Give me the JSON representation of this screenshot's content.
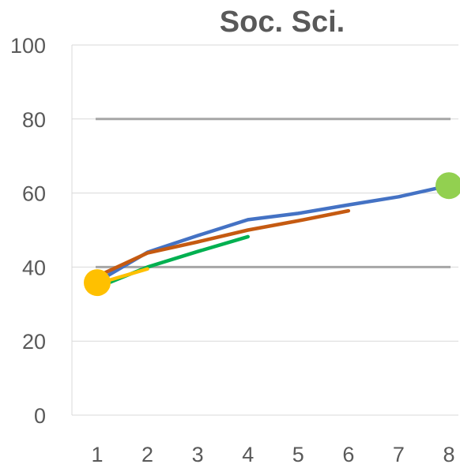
{
  "chart_data": {
    "type": "line",
    "title": "Soc. Sci.",
    "xlabel": "",
    "ylabel": "",
    "x": [
      1,
      2,
      3,
      4,
      5,
      6,
      7,
      8
    ],
    "ylim": [
      0,
      100
    ],
    "yticks": [
      0,
      20,
      40,
      60,
      80,
      100
    ],
    "grid": true,
    "legend": "none",
    "reference_lines": [
      {
        "y": 40,
        "color": "#a6a6a6"
      },
      {
        "y": 80,
        "color": "#a6a6a6"
      }
    ],
    "series": [
      {
        "color": "#4472c4",
        "values": [
          36,
          44,
          48.5,
          52.8,
          54.5,
          56.8,
          59,
          62
        ]
      },
      {
        "color": "#c55a11",
        "values": [
          37.5,
          43.8,
          46.8,
          50,
          52.5,
          55.2,
          null,
          null
        ]
      },
      {
        "color": "#00b050",
        "values": [
          34.5,
          40,
          44.2,
          48.2,
          null,
          null,
          null,
          null
        ]
      },
      {
        "color": "#ffc000",
        "values": [
          35.5,
          39.5,
          null,
          null,
          null,
          null,
          null,
          null
        ]
      }
    ],
    "markers": [
      {
        "x": 1,
        "y": 35.8,
        "color": "#ffc000"
      },
      {
        "x": 8,
        "y": 62,
        "color": "#92d050"
      }
    ]
  }
}
